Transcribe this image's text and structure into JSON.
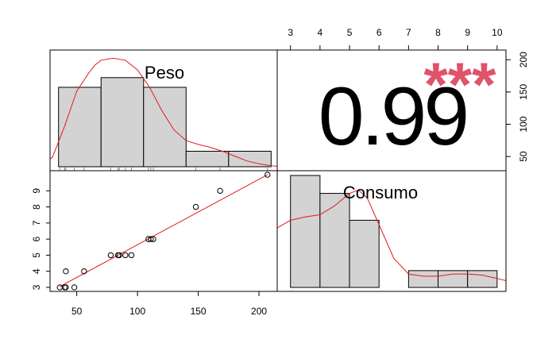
{
  "chart_data": [
    {
      "type": "histogram",
      "panel": "diag-1",
      "variable_label": "Peso",
      "bin_edges": [
        35,
        70,
        105,
        140,
        175,
        210
      ],
      "bar_heights": [
        0.82,
        0.92,
        0.82,
        0.16,
        0.16
      ],
      "rug_x": [
        36,
        40,
        41,
        48,
        56,
        78,
        84,
        85,
        90,
        95,
        109,
        111,
        113,
        148,
        168,
        207
      ],
      "density_x": [
        20,
        30,
        40,
        50,
        60,
        65,
        70,
        80,
        90,
        100,
        110,
        120,
        130,
        140,
        150,
        160,
        170,
        180,
        190,
        200,
        210,
        220
      ],
      "density_y": [
        0.0,
        0.1,
        0.42,
        0.78,
        0.97,
        1.05,
        1.1,
        1.12,
        1.1,
        1.0,
        0.82,
        0.58,
        0.38,
        0.27,
        0.23,
        0.2,
        0.16,
        0.11,
        0.06,
        0.03,
        0.01,
        0.0
      ],
      "density_color": "#e31a1c",
      "bar_fill": "#d3d3d3"
    },
    {
      "type": "correlation_text",
      "panel": "upper",
      "value_label": "0.99",
      "stars": "***",
      "star_color": "#df536b"
    },
    {
      "type": "scatter",
      "panel": "lower",
      "x": [
        36,
        40,
        41,
        41,
        48,
        56,
        78,
        84,
        85,
        90,
        95,
        109,
        111,
        113,
        148,
        168,
        207
      ],
      "y": [
        3,
        3,
        3,
        4,
        3,
        4,
        5,
        5,
        5,
        5,
        5,
        6,
        6,
        6,
        8,
        9,
        10
      ],
      "fit_line": [
        [
          36,
          3.05
        ],
        [
          207,
          10.0
        ]
      ],
      "fit_color": "#e31a1c",
      "x_ticks": [
        "50",
        "100",
        "150",
        "200"
      ],
      "y_ticks": [
        "3",
        "4",
        "5",
        "6",
        "7",
        "8",
        "9"
      ],
      "xlim": [
        28,
        215
      ],
      "ylim": [
        2.75,
        10.25
      ]
    },
    {
      "type": "histogram",
      "panel": "diag-2",
      "variable_label": "Consumo",
      "bin_edges": [
        3,
        4,
        5,
        6,
        7,
        8,
        9,
        10
      ],
      "bar_heights": [
        1.0,
        0.84,
        0.6,
        0.0,
        0.15,
        0.15,
        0.15
      ],
      "density_x": [
        2.3,
        2.6,
        3.0,
        3.5,
        4.0,
        4.5,
        5.0,
        5.3,
        5.6,
        6.0,
        6.5,
        7.0,
        7.5,
        8.0,
        8.5,
        9.0,
        9.5,
        10.0,
        10.3
      ],
      "density_y": [
        0.5,
        0.54,
        0.6,
        0.63,
        0.65,
        0.73,
        0.84,
        0.87,
        0.8,
        0.56,
        0.26,
        0.12,
        0.1,
        0.1,
        0.12,
        0.12,
        0.11,
        0.08,
        0.06
      ],
      "density_color": "#e31a1c",
      "bar_fill": "#d3d3d3",
      "x_ticks": [
        "3",
        "4",
        "5",
        "6",
        "7",
        "8",
        "9",
        "10"
      ],
      "right_axis_ticks": [
        "50",
        "100",
        "150",
        "200"
      ]
    }
  ]
}
